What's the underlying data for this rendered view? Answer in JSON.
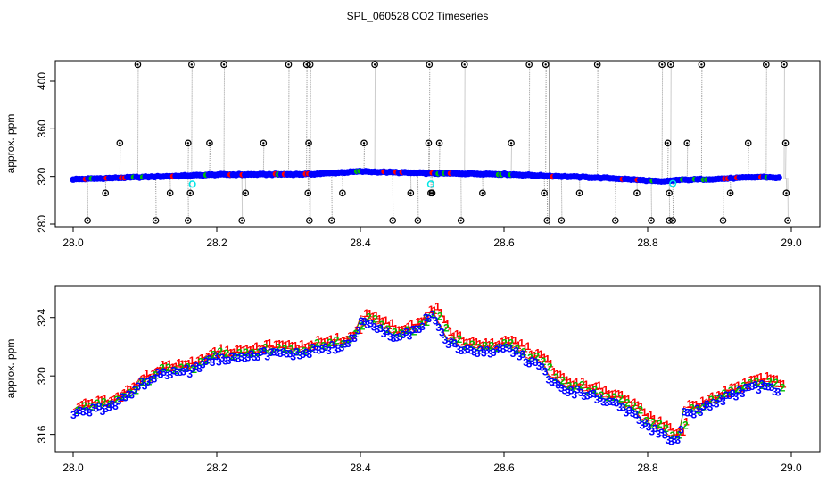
{
  "title": "SPL_060528  CO2 Timeseries",
  "colors": {
    "flag_1": "#ff0000",
    "flag_2": "#00c000",
    "flag_3": "#0000ff",
    "flag_4": "#00e5e5",
    "outlier": "#000000",
    "line": "#999999"
  },
  "chart_data": [
    {
      "type": "line",
      "title": "SPL_060528  CO2 Timeseries",
      "xlabel": "",
      "ylabel": "approx. ppm",
      "xlim": [
        28.0,
        29.0
      ],
      "ylim": [
        280,
        415
      ],
      "xticks": [
        "28.0",
        "28.2",
        "28.4",
        "28.6",
        "28.8",
        "29.0"
      ],
      "xtick_values": [
        28.0,
        28.2,
        28.4,
        28.6,
        28.8,
        29.0
      ],
      "yticks": [
        "280",
        "320",
        "360",
        "400"
      ],
      "ytick_values": [
        280,
        320,
        360,
        400
      ],
      "baseline": {
        "x": [
          28.0,
          28.1,
          28.2,
          28.3,
          28.33,
          28.4,
          28.5,
          28.55,
          28.6,
          28.66,
          28.75,
          28.8,
          28.82,
          28.84,
          28.9,
          28.96,
          28.99
        ],
        "y": [
          317.6,
          319.5,
          321.5,
          321.8,
          321.9,
          324.2,
          322.6,
          322.4,
          321.9,
          320.5,
          318.5,
          316.6,
          315.5,
          317.0,
          318.0,
          319.6,
          318.6
        ]
      },
      "outliers": {
        "x": [
          28.02,
          28.045,
          28.065,
          28.09,
          28.115,
          28.135,
          28.16,
          28.16,
          28.163,
          28.165,
          28.21,
          28.19,
          28.235,
          28.24,
          28.265,
          28.3,
          28.325,
          28.328,
          28.327,
          28.329,
          28.33,
          28.36,
          28.375,
          28.405,
          28.42,
          28.445,
          28.47,
          28.48,
          28.495,
          28.496,
          28.498,
          28.5,
          28.51,
          28.545,
          28.54,
          28.57,
          28.61,
          28.635,
          28.658,
          28.656,
          28.66,
          28.68,
          28.705,
          28.73,
          28.755,
          28.785,
          28.805,
          28.82,
          28.828,
          28.83,
          28.832,
          28.83,
          28.835,
          28.855,
          28.875,
          28.905,
          28.915,
          28.94,
          28.965,
          28.99,
          28.992,
          28.993,
          28.995
        ],
        "y": [
          283,
          306,
          348,
          414,
          283,
          306,
          283,
          348,
          306,
          414,
          414,
          348,
          283,
          306,
          348,
          414,
          414,
          348,
          306,
          283,
          414,
          283,
          306,
          348,
          414,
          283,
          306,
          283,
          348,
          414,
          306,
          306,
          348,
          414,
          283,
          306,
          348,
          414,
          414,
          306,
          283,
          283,
          306,
          414,
          283,
          306,
          283,
          414,
          348,
          306,
          414,
          283,
          283,
          348,
          414,
          283,
          306,
          348,
          414,
          414,
          348,
          306,
          283
        ]
      },
      "cyan_points": {
        "x": [
          28.166,
          28.498,
          28.835
        ],
        "y": [
          313.5,
          313.5,
          314.0
        ]
      }
    },
    {
      "type": "line",
      "title": "",
      "xlabel": "",
      "ylabel": "approx. ppm",
      "xlim": [
        28.0,
        29.0
      ],
      "ylim": [
        315,
        326
      ],
      "xticks": [
        "28.0",
        "28.2",
        "28.4",
        "28.6",
        "28.8",
        "29.0"
      ],
      "xtick_values": [
        28.0,
        28.2,
        28.4,
        28.6,
        28.8,
        29.0
      ],
      "yticks": [
        "316",
        "320",
        "324"
      ],
      "ytick_values": [
        316,
        320,
        324
      ],
      "point_labels": [
        "1",
        "2",
        "3"
      ],
      "series_x": [
        28.0,
        28.03,
        28.06,
        28.09,
        28.12,
        28.15,
        28.16,
        28.18,
        28.2,
        28.25,
        28.3,
        28.33,
        28.36,
        28.39,
        28.4,
        28.42,
        28.45,
        28.48,
        28.5,
        28.52,
        28.55,
        28.58,
        28.6,
        28.62,
        28.65,
        28.68,
        28.7,
        28.72,
        28.75,
        28.78,
        28.8,
        28.82,
        28.84,
        28.85,
        28.88,
        28.91,
        28.94,
        28.97,
        28.985
      ],
      "series_y": [
        317.6,
        317.7,
        318.2,
        319.4,
        320.2,
        320.5,
        320.4,
        321.0,
        321.3,
        321.6,
        321.6,
        321.8,
        322.0,
        322.5,
        324.0,
        323.4,
        322.7,
        323.2,
        324.5,
        322.5,
        321.7,
        321.8,
        322.0,
        321.6,
        320.6,
        319.2,
        319.0,
        318.8,
        318.2,
        317.4,
        316.7,
        316.2,
        315.4,
        317.4,
        318.0,
        318.6,
        319.2,
        319.4,
        318.6
      ]
    }
  ]
}
